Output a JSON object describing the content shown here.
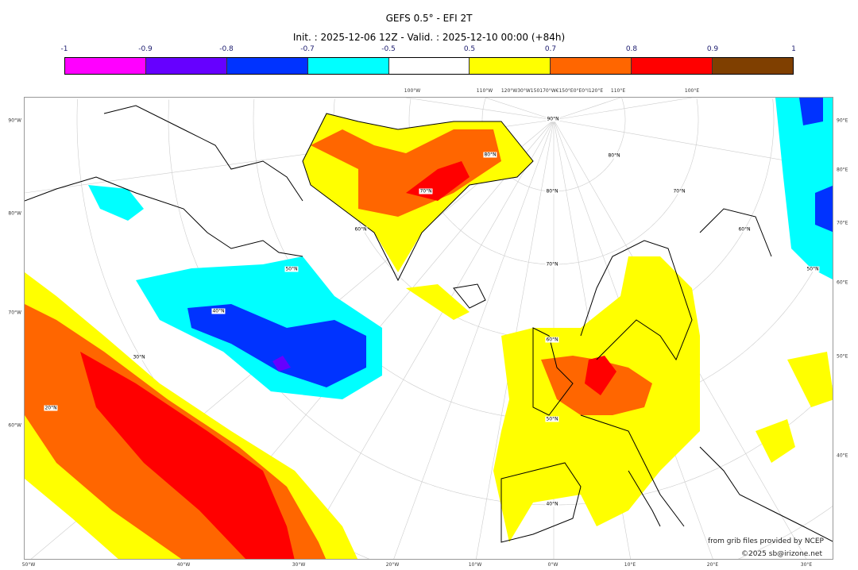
{
  "title": "GEFS 0.5° - EFI 2T",
  "subtitle": "Init. : 2025-12-06 12Z - Valid. : 2025-12-10 00:00 (+84h)",
  "colorbar": {
    "ticks": [
      "-1",
      "-0.9",
      "-0.8",
      "-0.7",
      "-0.5",
      "0.5",
      "0.7",
      "0.8",
      "0.9",
      "1"
    ],
    "colors": [
      "#ff00ff",
      "#6600ff",
      "#0033ff",
      "#00ffff",
      "#ffffff",
      "#ffff00",
      "#ff6600",
      "#ff0000",
      "#7f3f00"
    ]
  },
  "axes": {
    "left": [
      "90°W",
      "80°W",
      "70°W",
      "60°W"
    ],
    "right": [
      "90°E",
      "80°E",
      "70°E",
      "60°E",
      "50°E",
      "40°E"
    ],
    "bottom": [
      "50°W",
      "40°W",
      "30°W",
      "20°W",
      "10°W",
      "0°W",
      "10°E",
      "20°E",
      "30°E"
    ],
    "top": [
      "100°W",
      "110°W",
      "120°W30°W150170°W€150°E0°E0°I120°E",
      "110°E",
      "100°E"
    ]
  },
  "lat_labels": [
    "90°N",
    "80°N",
    "70°N",
    "60°N",
    "50°N",
    "40°N",
    "50°N",
    "40°N",
    "30°N",
    "20°N",
    "60°N",
    "70°N",
    "80°N",
    "80°N",
    "70°N",
    "60°N",
    "50°N"
  ],
  "credits": {
    "source": "from grib files provided by NCEP",
    "copyright": "©2025 sb@irizone.net"
  }
}
